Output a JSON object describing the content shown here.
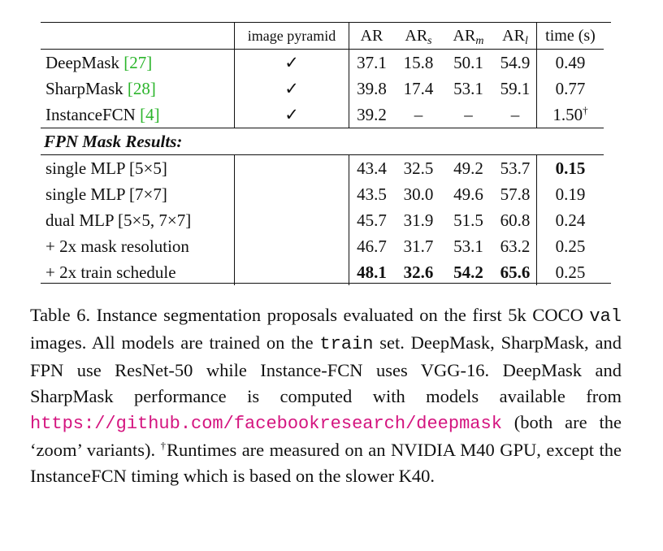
{
  "table": {
    "header": {
      "method": "",
      "pyramid": "image pyramid",
      "ar": "AR",
      "ar_s_base": "AR",
      "ar_s_sub": "s",
      "ar_m_base": "AR",
      "ar_m_sub": "m",
      "ar_l_base": "AR",
      "ar_l_sub": "l",
      "time": "time (s)"
    },
    "baselines": [
      {
        "name": "DeepMask ",
        "ref": "[27]",
        "pyramid": "✓",
        "ar": "37.1",
        "ar_s": "15.8",
        "ar_m": "50.1",
        "ar_l": "54.9",
        "time": "0.49",
        "time_sup": ""
      },
      {
        "name": "SharpMask ",
        "ref": "[28]",
        "pyramid": "✓",
        "ar": "39.8",
        "ar_s": "17.4",
        "ar_m": "53.1",
        "ar_l": "59.1",
        "time": "0.77",
        "time_sup": ""
      },
      {
        "name": "InstanceFCN ",
        "ref": "[4]",
        "pyramid": "✓",
        "ar": "39.2",
        "ar_s": "–",
        "ar_m": "–",
        "ar_l": "–",
        "time": "1.50",
        "time_sup": "†"
      }
    ],
    "section_label": "FPN Mask Results:",
    "fpn": [
      {
        "name": "single MLP [5×5]",
        "ar": "43.4",
        "ar_s": "32.5",
        "ar_m": "49.2",
        "ar_l": "53.7",
        "time": "0.15"
      },
      {
        "name": "single MLP [7×7]",
        "ar": "43.5",
        "ar_s": "30.0",
        "ar_m": "49.6",
        "ar_l": "57.8",
        "time": "0.19"
      },
      {
        "name": "dual MLP [5×5, 7×7]",
        "ar": "45.7",
        "ar_s": "31.9",
        "ar_m": "51.5",
        "ar_l": "60.8",
        "time": "0.24"
      },
      {
        "name": "+ 2x mask resolution",
        "ar": "46.7",
        "ar_s": "31.7",
        "ar_m": "53.1",
        "ar_l": "63.2",
        "time": "0.25"
      },
      {
        "name": "+ 2x train schedule",
        "ar": "48.1",
        "ar_s": "32.6",
        "ar_m": "54.2",
        "ar_l": "65.6",
        "time": "0.25"
      }
    ]
  },
  "caption": {
    "p1": "Table 6. Instance segmentation proposals evaluated on the first 5k COCO ",
    "val": "val",
    "p2": " images.  All models are trained on the ",
    "train": "train",
    "p3": " set. DeepMask, SharpMask, and FPN use ResNet-50 while Instance-FCN uses VGG-16.  DeepMask and SharpMask performance is computed with models available from ",
    "link": "https://github.com/facebookresearch/deepmask",
    "p4": " (both are the ‘zoom’ variants). ",
    "dagger": "†",
    "p5": "Runtimes are measured on an NVIDIA M40 GPU, except the InstanceFCN timing which is based on the slower K40."
  }
}
